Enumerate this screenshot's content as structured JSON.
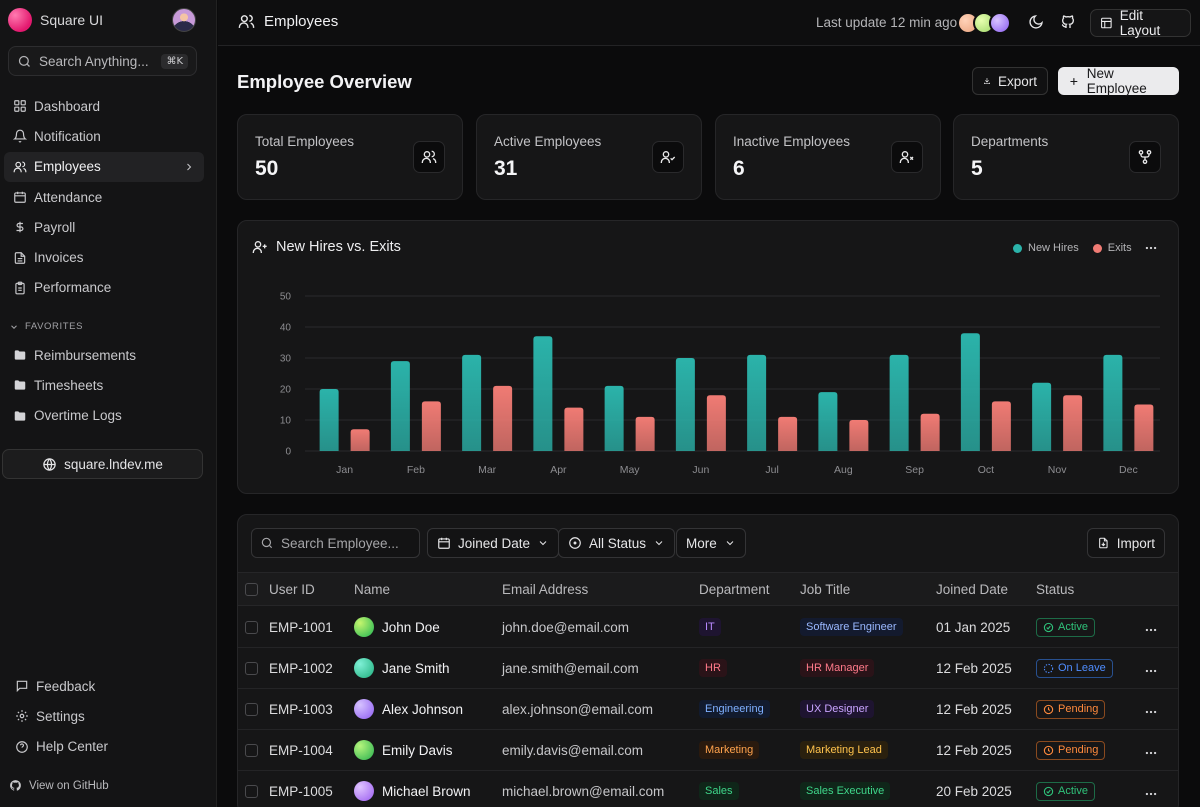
{
  "brand": {
    "name": "Square UI"
  },
  "search": {
    "placeholder": "Search Anything...",
    "shortcut": "⌘K"
  },
  "nav": [
    {
      "label": "Dashboard",
      "icon": "dashboard-icon"
    },
    {
      "label": "Notification",
      "icon": "bell-icon"
    },
    {
      "label": "Employees",
      "icon": "users-icon",
      "active": true
    },
    {
      "label": "Attendance",
      "icon": "calendar-icon"
    },
    {
      "label": "Payroll",
      "icon": "dollar-icon"
    },
    {
      "label": "Invoices",
      "icon": "file-icon"
    },
    {
      "label": "Performance",
      "icon": "clipboard-icon"
    }
  ],
  "favorites": {
    "label": "FAVORITES",
    "items": [
      "Reimbursements",
      "Timesheets",
      "Overtime Logs"
    ]
  },
  "site_link": "square.lndev.me",
  "bottom_nav": [
    "Feedback",
    "Settings",
    "Help Center"
  ],
  "github_link": "View on GitHub",
  "header": {
    "title": "Employees",
    "last_update": "Last update 12 min ago",
    "edit_layout": "Edit Layout"
  },
  "overview": {
    "title": "Employee Overview",
    "export": "Export",
    "new_employee": "New Employee"
  },
  "stats": [
    {
      "label": "Total Employees",
      "value": "50",
      "icon": "users-icon"
    },
    {
      "label": "Active Employees",
      "value": "31",
      "icon": "user-check-icon"
    },
    {
      "label": "Inactive Employees",
      "value": "6",
      "icon": "user-x-icon"
    },
    {
      "label": "Departments",
      "value": "5",
      "icon": "git-fork-icon"
    }
  ],
  "chart": {
    "title": "New Hires vs. Exits"
  },
  "chart_data": {
    "type": "bar",
    "categories": [
      "Jan",
      "Feb",
      "Mar",
      "Apr",
      "May",
      "Jun",
      "Jul",
      "Aug",
      "Sep",
      "Oct",
      "Nov",
      "Dec"
    ],
    "series": [
      {
        "name": "New Hires",
        "color": "#2bb3aa",
        "values": [
          20,
          29,
          31,
          37,
          21,
          30,
          31,
          19,
          31,
          38,
          22,
          31
        ]
      },
      {
        "name": "Exits",
        "color": "#f07b74",
        "values": [
          7,
          16,
          21,
          14,
          11,
          18,
          11,
          10,
          12,
          16,
          18,
          15
        ]
      }
    ],
    "ylim": [
      0,
      50
    ],
    "yticks": [
      0,
      10,
      20,
      30,
      40,
      50
    ],
    "grid": true,
    "legend": "top-right"
  },
  "table": {
    "search_placeholder": "Search Employee...",
    "filters": [
      "Joined Date",
      "All Status",
      "More"
    ],
    "import": "Import",
    "columns": [
      "User ID",
      "Name",
      "Email Address",
      "Department",
      "Job Title",
      "Joined Date",
      "Status"
    ],
    "rows": [
      {
        "id": "EMP-1001",
        "name": "John Doe",
        "email": "john.doe@email.com",
        "department": "IT",
        "job": "Software Engineer",
        "joined": "01 Jan 2025",
        "status": "Active",
        "avatar": [
          "#c5f56e",
          "#1fb552"
        ],
        "dept_color": "#b889ff",
        "dept_bg": "#1e1430",
        "job_color": "#9ab8ff",
        "job_bg": "#131a2e",
        "status_color": "#2fc27a",
        "status_border": "#1d6b47"
      },
      {
        "id": "EMP-1002",
        "name": "Jane Smith",
        "email": "jane.smith@email.com",
        "department": "HR",
        "job": "HR Manager",
        "joined": "12 Feb 2025",
        "status": "On Leave",
        "avatar": [
          "#7ff0d6",
          "#1fae7c"
        ],
        "dept_color": "#ff7a8a",
        "dept_bg": "#2a1318",
        "job_color": "#ff7a8a",
        "job_bg": "#2a1318",
        "status_color": "#4f8dff",
        "status_border": "#28508f"
      },
      {
        "id": "EMP-1003",
        "name": "Alex Johnson",
        "email": "alex.johnson@email.com",
        "department": "Engineering",
        "job": "UX Designer",
        "joined": "12 Feb 2025",
        "status": "Pending",
        "avatar": [
          "#d6c2ff",
          "#8d5cf0"
        ],
        "dept_color": "#7fb0ff",
        "dept_bg": "#121b2e",
        "job_color": "#c9a4ff",
        "job_bg": "#1e1430",
        "status_color": "#ff8a3d",
        "status_border": "#8a4a1f"
      },
      {
        "id": "EMP-1004",
        "name": "Emily Davis",
        "email": "emily.davis@email.com",
        "department": "Marketing",
        "job": "Marketing Lead",
        "joined": "12 Feb 2025",
        "status": "Pending",
        "avatar": [
          "#b6f57d",
          "#27b04e"
        ],
        "dept_color": "#ffa34d",
        "dept_bg": "#2a1a0e",
        "job_color": "#ffc34d",
        "job_bg": "#2a200e",
        "status_color": "#ff8a3d",
        "status_border": "#8a4a1f"
      },
      {
        "id": "EMP-1005",
        "name": "Michael Brown",
        "email": "michael.brown@email.com",
        "department": "Sales",
        "job": "Sales Executive",
        "joined": "20 Feb 2025",
        "status": "Active",
        "avatar": [
          "#e0c4ff",
          "#9a5cf0"
        ],
        "dept_color": "#3fd68a",
        "dept_bg": "#0f2619",
        "job_color": "#3fd68a",
        "job_bg": "#0f2619",
        "status_color": "#2fc27a",
        "status_border": "#1d6b47"
      }
    ]
  }
}
